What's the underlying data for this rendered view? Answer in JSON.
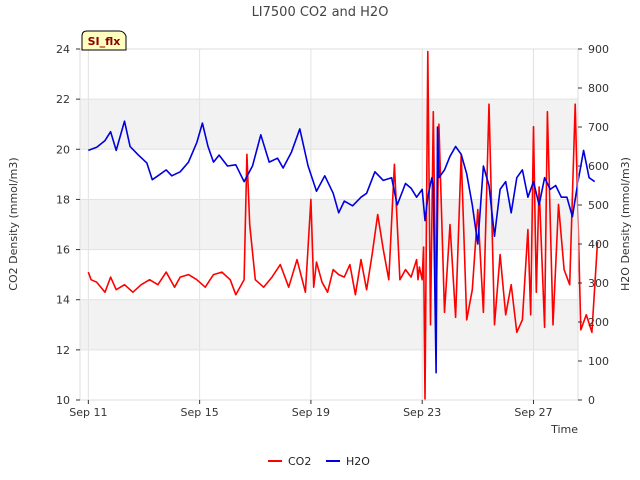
{
  "chart_data": {
    "type": "line",
    "title": "LI7500 CO2 and H2O",
    "badge": "SI_flx",
    "xlabel": "Time",
    "ylabel_left": "CO2 Density (mmol/m3)",
    "ylabel_right": "H2O Density (mmol/m3)",
    "x_unit": "days since Sep 11",
    "xlim": [
      -0.3,
      17.6
    ],
    "ylim_left": [
      10,
      24
    ],
    "ylim_right": [
      0,
      900
    ],
    "x_ticks": [
      {
        "value": 0,
        "label": "Sep 11"
      },
      {
        "value": 4,
        "label": "Sep 15"
      },
      {
        "value": 8,
        "label": "Sep 19"
      },
      {
        "value": 12,
        "label": "Sep 23"
      },
      {
        "value": 16,
        "label": "Sep 27"
      }
    ],
    "y_ticks_left": [
      10,
      12,
      14,
      16,
      18,
      20,
      22,
      24
    ],
    "y_ticks_right": [
      0,
      100,
      200,
      300,
      400,
      500,
      600,
      700,
      800,
      900
    ],
    "grid": true,
    "legend_position": "bottom-center",
    "colors": {
      "co2": "#ff0000",
      "h2o": "#0000dd",
      "band": "#f2f2f2",
      "badge_fill": "#ffffc0"
    },
    "series": [
      {
        "name": "CO2",
        "axis": "left",
        "x": [
          0,
          0.1,
          0.3,
          0.6,
          0.8,
          1.0,
          1.3,
          1.6,
          1.9,
          2.2,
          2.5,
          2.8,
          3.1,
          3.3,
          3.6,
          3.9,
          4.2,
          4.5,
          4.8,
          5.1,
          5.3,
          5.6,
          5.7,
          5.8,
          6.0,
          6.3,
          6.6,
          6.9,
          7.2,
          7.5,
          7.8,
          8.0,
          8.1,
          8.2,
          8.4,
          8.6,
          8.8,
          9.0,
          9.2,
          9.4,
          9.6,
          9.8,
          10.0,
          10.2,
          10.4,
          10.6,
          10.8,
          11.0,
          11.2,
          11.4,
          11.6,
          11.8,
          11.85,
          11.9,
          12.0,
          12.05,
          12.1,
          12.2,
          12.3,
          12.4,
          12.5,
          12.6,
          12.8,
          13.0,
          13.2,
          13.4,
          13.6,
          13.8,
          14.0,
          14.2,
          14.4,
          14.6,
          14.8,
          15.0,
          15.2,
          15.4,
          15.6,
          15.8,
          15.9,
          16.0,
          16.1,
          16.2,
          16.4,
          16.5,
          16.7,
          16.9,
          17.1,
          17.3,
          17.5,
          17.7,
          17.9,
          18.1,
          18.3
        ],
        "values": [
          15.1,
          14.8,
          14.7,
          14.3,
          14.9,
          14.4,
          14.6,
          14.3,
          14.6,
          14.8,
          14.6,
          15.1,
          14.5,
          14.9,
          15.0,
          14.8,
          14.5,
          15.0,
          15.1,
          14.8,
          14.2,
          14.8,
          19.8,
          17.0,
          14.8,
          14.5,
          14.9,
          15.4,
          14.5,
          15.6,
          14.3,
          18.0,
          14.5,
          15.5,
          14.7,
          14.3,
          15.2,
          15.0,
          14.9,
          15.4,
          14.2,
          15.6,
          14.4,
          15.8,
          17.4,
          16.0,
          14.8,
          19.4,
          14.8,
          15.2,
          14.9,
          15.6,
          14.8,
          15.3,
          14.8,
          16.1,
          10.0,
          23.9,
          13.0,
          21.5,
          13.1,
          21.0,
          13.5,
          17.0,
          13.3,
          19.8,
          13.2,
          14.4,
          17.6,
          13.5,
          21.8,
          13.0,
          15.8,
          13.4,
          14.6,
          12.7,
          13.2,
          16.8,
          13.4,
          20.9,
          14.3,
          18.5,
          12.9,
          21.5,
          13.0,
          17.8,
          15.2,
          14.6,
          21.8,
          12.8,
          13.4,
          12.7,
          16.3
        ]
      },
      {
        "name": "H2O",
        "axis": "right",
        "x": [
          0,
          0.3,
          0.6,
          0.8,
          1.0,
          1.3,
          1.5,
          1.8,
          2.1,
          2.3,
          2.5,
          2.8,
          3.0,
          3.3,
          3.6,
          3.9,
          4.1,
          4.3,
          4.5,
          4.7,
          5.0,
          5.3,
          5.6,
          5.9,
          6.2,
          6.5,
          6.8,
          7.0,
          7.3,
          7.6,
          7.9,
          8.2,
          8.5,
          8.8,
          9.0,
          9.2,
          9.5,
          9.8,
          10.0,
          10.3,
          10.6,
          10.9,
          11.1,
          11.4,
          11.6,
          11.8,
          12.0,
          12.1,
          12.2,
          12.3,
          12.35,
          12.4,
          12.5,
          12.55,
          12.6,
          12.8,
          13.0,
          13.2,
          13.4,
          13.6,
          13.8,
          14.0,
          14.2,
          14.4,
          14.6,
          14.8,
          15.0,
          15.2,
          15.4,
          15.6,
          15.8,
          16.0,
          16.2,
          16.4,
          16.6,
          16.8,
          17.0,
          17.2,
          17.4,
          17.6,
          17.8,
          18.0,
          18.2
        ],
        "values": [
          640,
          648,
          665,
          688,
          640,
          715,
          650,
          628,
          608,
          565,
          575,
          590,
          575,
          585,
          610,
          660,
          710,
          650,
          610,
          628,
          600,
          603,
          560,
          600,
          680,
          610,
          620,
          595,
          635,
          695,
          600,
          535,
          575,
          530,
          480,
          510,
          498,
          520,
          530,
          585,
          563,
          570,
          500,
          555,
          543,
          520,
          540,
          460,
          520,
          555,
          570,
          545,
          70,
          700,
          570,
          590,
          625,
          650,
          630,
          580,
          500,
          400,
          600,
          550,
          420,
          540,
          560,
          480,
          570,
          590,
          520,
          560,
          500,
          570,
          540,
          550,
          520,
          520,
          470,
          560,
          640,
          570,
          560
        ]
      }
    ]
  }
}
